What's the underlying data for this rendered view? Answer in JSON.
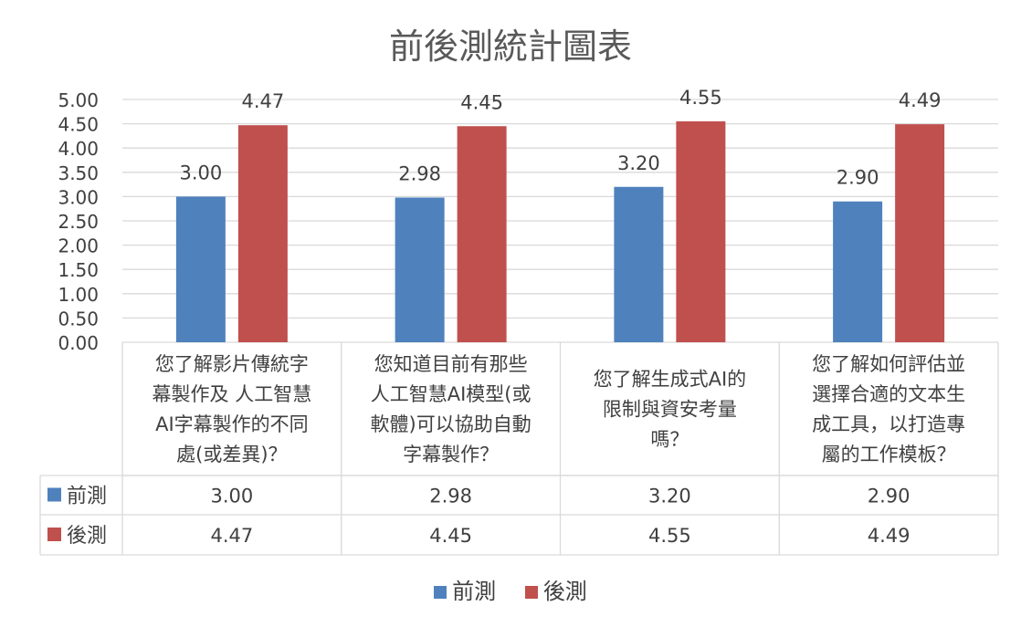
{
  "title": "前後測統計圖表",
  "colors": {
    "series1": "#4F81BD",
    "series2": "#C0504D",
    "grid": "#D9D9D9",
    "text": "#404040",
    "title": "#595959"
  },
  "chart_data": {
    "type": "bar",
    "title": "前後測統計圖表",
    "categories": [
      [
        "您了解影片傳統字",
        "幕製作及 人工智慧",
        "AI字幕製作的不同",
        "處(或差異)？"
      ],
      [
        "您知道目前有那些",
        "人工智慧AI模型(或",
        "軟體)可以協助自動",
        "字幕製作？"
      ],
      [
        "您了解生成式AI的",
        "限制與資安考量",
        "嗎？"
      ],
      [
        "您了解如何評估並",
        "選擇合適的文本生",
        "成工具，以打造專",
        "屬的工作模板？"
      ]
    ],
    "series": [
      {
        "name": "前測",
        "values": [
          3.0,
          2.98,
          3.2,
          2.9
        ],
        "labels": [
          "3.00",
          "2.98",
          "3.20",
          "2.90"
        ]
      },
      {
        "name": "後測",
        "values": [
          4.47,
          4.45,
          4.55,
          4.49
        ],
        "labels": [
          "4.47",
          "4.45",
          "4.55",
          "4.49"
        ]
      }
    ],
    "ylim": [
      0,
      5
    ],
    "yticks": [
      "0.00",
      "0.50",
      "1.00",
      "1.50",
      "2.00",
      "2.50",
      "3.00",
      "3.50",
      "4.00",
      "4.50",
      "5.00"
    ],
    "grid": true,
    "legend": "bottom",
    "data_table": true
  }
}
